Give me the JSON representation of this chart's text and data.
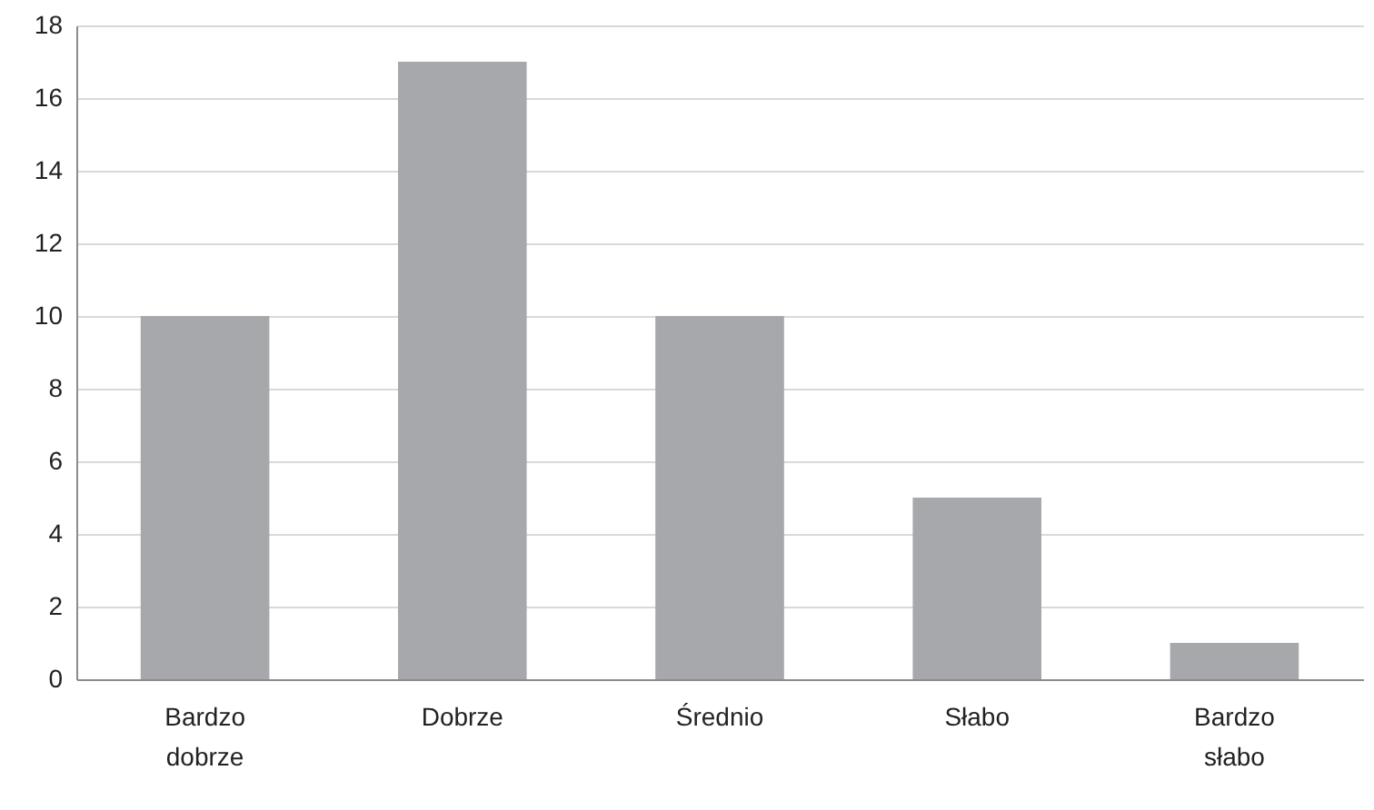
{
  "chart_data": {
    "type": "bar",
    "categories": [
      "Bardzo dobrze",
      "Dobrze",
      "Średnio",
      "Słabo",
      "Bardzo słabo"
    ],
    "values": [
      10,
      17,
      10,
      5,
      1
    ],
    "color": "#a7a8ab",
    "ylim": [
      0,
      18
    ],
    "yticks": [
      0,
      2,
      4,
      6,
      8,
      10,
      12,
      14,
      16,
      18
    ],
    "grid": "y"
  }
}
